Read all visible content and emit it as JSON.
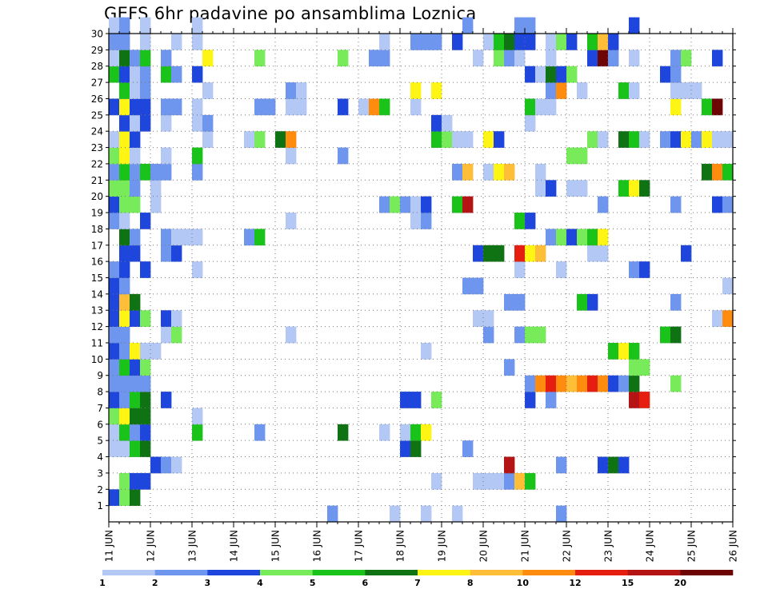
{
  "chart_data": {
    "type": "heatmap",
    "title": "GEFS 6hr padavine po ansamblima Loznica",
    "xlabel": "",
    "ylabel": "",
    "x_axis": {
      "unit": "6-hour step",
      "range": [
        0,
        60
      ],
      "tick_labels": [
        "11 JUN",
        "12 JUN",
        "13 JUN",
        "14 JUN",
        "15 JUN",
        "16 JUN",
        "17 JUN",
        "18 JUN",
        "19 JUN",
        "20 JUN",
        "21 JUN",
        "22 JUN",
        "23 JUN",
        "24 JUN",
        "25 JUN",
        "26 JUN"
      ]
    },
    "y_axis": {
      "range": [
        0,
        30
      ],
      "tick_labels": [
        1,
        2,
        3,
        4,
        5,
        6,
        7,
        8,
        9,
        10,
        11,
        12,
        13,
        14,
        15,
        16,
        17,
        18,
        19,
        20,
        21,
        22,
        23,
        24,
        25,
        26,
        27,
        28,
        29,
        30
      ]
    },
    "grid": true,
    "colorbar": {
      "labels": [
        "1",
        "2",
        "3",
        "4",
        "5",
        "6",
        "7",
        "8",
        "10",
        "12",
        "15",
        "20"
      ],
      "colors": [
        "#b4c8f5",
        "#6e96ef",
        "#1e46dc",
        "#78eb5a",
        "#19c319",
        "#0f7314",
        "#fff514",
        "#ffbe37",
        "#ff8c0f",
        "#e61e0f",
        "#b41414",
        "#6e0505"
      ]
    },
    "cells": [
      [
        0,
        1,
        3
      ],
      [
        1,
        1,
        4
      ],
      [
        2,
        1,
        6
      ],
      [
        1,
        2,
        4
      ],
      [
        2,
        2,
        3
      ],
      [
        3,
        2,
        3
      ],
      [
        31,
        2,
        1
      ],
      [
        35,
        2,
        1
      ],
      [
        36,
        2,
        1
      ],
      [
        37,
        2,
        1
      ],
      [
        38,
        2,
        2
      ],
      [
        39,
        2,
        8
      ],
      [
        40,
        2,
        5
      ],
      [
        4,
        3,
        3
      ],
      [
        5,
        3,
        2
      ],
      [
        6,
        3,
        1
      ],
      [
        38,
        3,
        11
      ],
      [
        43,
        3,
        2
      ],
      [
        47,
        3,
        3
      ],
      [
        48,
        3,
        6
      ],
      [
        49,
        3,
        3
      ],
      [
        0,
        4,
        1
      ],
      [
        1,
        4,
        1
      ],
      [
        2,
        4,
        5
      ],
      [
        3,
        4,
        6
      ],
      [
        28,
        4,
        3
      ],
      [
        29,
        4,
        6
      ],
      [
        34,
        4,
        2
      ],
      [
        0,
        5,
        1
      ],
      [
        1,
        5,
        5
      ],
      [
        2,
        5,
        2
      ],
      [
        3,
        5,
        3
      ],
      [
        8,
        5,
        5
      ],
      [
        14,
        5,
        2
      ],
      [
        22,
        5,
        6
      ],
      [
        26,
        5,
        1
      ],
      [
        28,
        5,
        1
      ],
      [
        29,
        5,
        5
      ],
      [
        30,
        5,
        7
      ],
      [
        0,
        6,
        4
      ],
      [
        1,
        6,
        7
      ],
      [
        2,
        6,
        6
      ],
      [
        3,
        6,
        6
      ],
      [
        8,
        6,
        1
      ],
      [
        0,
        7,
        3
      ],
      [
        1,
        7,
        2
      ],
      [
        2,
        7,
        5
      ],
      [
        3,
        7,
        6
      ],
      [
        5,
        7,
        3
      ],
      [
        28,
        7,
        3
      ],
      [
        29,
        7,
        3
      ],
      [
        31,
        7,
        4
      ],
      [
        40,
        7,
        3
      ],
      [
        42,
        7,
        2
      ],
      [
        50,
        7,
        11
      ],
      [
        51,
        7,
        10
      ],
      [
        0,
        8,
        2
      ],
      [
        1,
        8,
        2
      ],
      [
        2,
        8,
        2
      ],
      [
        3,
        8,
        2
      ],
      [
        40,
        8,
        2
      ],
      [
        41,
        8,
        9
      ],
      [
        42,
        8,
        10
      ],
      [
        43,
        8,
        9
      ],
      [
        44,
        8,
        8
      ],
      [
        45,
        8,
        9
      ],
      [
        46,
        8,
        10
      ],
      [
        47,
        8,
        9
      ],
      [
        48,
        8,
        3
      ],
      [
        49,
        8,
        2
      ],
      [
        50,
        8,
        6
      ],
      [
        54,
        8,
        4
      ],
      [
        0,
        9,
        2
      ],
      [
        1,
        9,
        5
      ],
      [
        2,
        9,
        3
      ],
      [
        3,
        9,
        4
      ],
      [
        38,
        9,
        2
      ],
      [
        50,
        9,
        4
      ],
      [
        51,
        9,
        4
      ],
      [
        0,
        10,
        3
      ],
      [
        1,
        10,
        2
      ],
      [
        2,
        10,
        7
      ],
      [
        3,
        10,
        1
      ],
      [
        4,
        10,
        1
      ],
      [
        30,
        10,
        1
      ],
      [
        48,
        10,
        5
      ],
      [
        49,
        10,
        7
      ],
      [
        50,
        10,
        5
      ],
      [
        0,
        11,
        2
      ],
      [
        1,
        11,
        2
      ],
      [
        5,
        11,
        1
      ],
      [
        6,
        11,
        4
      ],
      [
        17,
        11,
        1
      ],
      [
        36,
        11,
        2
      ],
      [
        39,
        11,
        2
      ],
      [
        40,
        11,
        4
      ],
      [
        41,
        11,
        4
      ],
      [
        53,
        11,
        5
      ],
      [
        54,
        11,
        6
      ],
      [
        0,
        12,
        3
      ],
      [
        1,
        12,
        7
      ],
      [
        2,
        12,
        3
      ],
      [
        3,
        12,
        4
      ],
      [
        5,
        12,
        3
      ],
      [
        6,
        12,
        1
      ],
      [
        35,
        12,
        1
      ],
      [
        36,
        12,
        1
      ],
      [
        58,
        12,
        1
      ],
      [
        59,
        12,
        9
      ],
      [
        0,
        13,
        3
      ],
      [
        1,
        13,
        8
      ],
      [
        2,
        13,
        6
      ],
      [
        38,
        13,
        2
      ],
      [
        39,
        13,
        2
      ],
      [
        45,
        13,
        5
      ],
      [
        46,
        13,
        3
      ],
      [
        54,
        13,
        2
      ],
      [
        0,
        14,
        3
      ],
      [
        1,
        14,
        2
      ],
      [
        34,
        14,
        2
      ],
      [
        35,
        14,
        2
      ],
      [
        59,
        14,
        1
      ],
      [
        0,
        15,
        2
      ],
      [
        1,
        15,
        3
      ],
      [
        3,
        15,
        3
      ],
      [
        8,
        15,
        1
      ],
      [
        39,
        15,
        1
      ],
      [
        43,
        15,
        1
      ],
      [
        50,
        15,
        2
      ],
      [
        51,
        15,
        3
      ],
      [
        1,
        16,
        3
      ],
      [
        2,
        16,
        3
      ],
      [
        5,
        16,
        2
      ],
      [
        6,
        16,
        3
      ],
      [
        35,
        16,
        3
      ],
      [
        36,
        16,
        6
      ],
      [
        37,
        16,
        6
      ],
      [
        39,
        16,
        10
      ],
      [
        40,
        16,
        7
      ],
      [
        41,
        16,
        8
      ],
      [
        46,
        16,
        1
      ],
      [
        47,
        16,
        1
      ],
      [
        55,
        16,
        3
      ],
      [
        1,
        17,
        6
      ],
      [
        2,
        17,
        2
      ],
      [
        5,
        17,
        2
      ],
      [
        6,
        17,
        1
      ],
      [
        7,
        17,
        1
      ],
      [
        8,
        17,
        1
      ],
      [
        13,
        17,
        2
      ],
      [
        14,
        17,
        5
      ],
      [
        42,
        17,
        2
      ],
      [
        43,
        17,
        4
      ],
      [
        44,
        17,
        3
      ],
      [
        45,
        17,
        4
      ],
      [
        46,
        17,
        5
      ],
      [
        47,
        17,
        7
      ],
      [
        0,
        18,
        2
      ],
      [
        1,
        18,
        1
      ],
      [
        3,
        18,
        3
      ],
      [
        17,
        18,
        1
      ],
      [
        29,
        18,
        1
      ],
      [
        30,
        18,
        2
      ],
      [
        39,
        18,
        5
      ],
      [
        40,
        18,
        3
      ],
      [
        0,
        19,
        3
      ],
      [
        1,
        19,
        4
      ],
      [
        2,
        19,
        4
      ],
      [
        4,
        19,
        1
      ],
      [
        26,
        19,
        2
      ],
      [
        27,
        19,
        4
      ],
      [
        28,
        19,
        2
      ],
      [
        29,
        19,
        1
      ],
      [
        30,
        19,
        3
      ],
      [
        33,
        19,
        5
      ],
      [
        34,
        19,
        11
      ],
      [
        47,
        19,
        2
      ],
      [
        54,
        19,
        2
      ],
      [
        58,
        19,
        3
      ],
      [
        59,
        19,
        2
      ],
      [
        0,
        20,
        4
      ],
      [
        1,
        20,
        4
      ],
      [
        2,
        20,
        2
      ],
      [
        4,
        20,
        1
      ],
      [
        41,
        20,
        1
      ],
      [
        42,
        20,
        3
      ],
      [
        44,
        20,
        1
      ],
      [
        45,
        20,
        1
      ],
      [
        49,
        20,
        5
      ],
      [
        50,
        20,
        7
      ],
      [
        51,
        20,
        6
      ],
      [
        0,
        21,
        2
      ],
      [
        1,
        21,
        5
      ],
      [
        2,
        21,
        2
      ],
      [
        3,
        21,
        5
      ],
      [
        4,
        21,
        2
      ],
      [
        5,
        21,
        2
      ],
      [
        8,
        21,
        2
      ],
      [
        33,
        21,
        2
      ],
      [
        34,
        21,
        8
      ],
      [
        36,
        21,
        1
      ],
      [
        37,
        21,
        7
      ],
      [
        38,
        21,
        8
      ],
      [
        41,
        21,
        1
      ],
      [
        57,
        21,
        6
      ],
      [
        58,
        21,
        9
      ],
      [
        59,
        21,
        5
      ],
      [
        0,
        22,
        4
      ],
      [
        1,
        22,
        7
      ],
      [
        2,
        22,
        1
      ],
      [
        5,
        22,
        1
      ],
      [
        8,
        22,
        5
      ],
      [
        17,
        22,
        1
      ],
      [
        22,
        22,
        2
      ],
      [
        44,
        22,
        4
      ],
      [
        45,
        22,
        4
      ],
      [
        0,
        23,
        1
      ],
      [
        1,
        23,
        7
      ],
      [
        2,
        23,
        3
      ],
      [
        9,
        23,
        1
      ],
      [
        13,
        23,
        1
      ],
      [
        14,
        23,
        4
      ],
      [
        16,
        23,
        6
      ],
      [
        17,
        23,
        9
      ],
      [
        31,
        23,
        5
      ],
      [
        32,
        23,
        4
      ],
      [
        33,
        23,
        1
      ],
      [
        34,
        23,
        1
      ],
      [
        36,
        23,
        7
      ],
      [
        37,
        23,
        3
      ],
      [
        46,
        23,
        4
      ],
      [
        47,
        23,
        1
      ],
      [
        49,
        23,
        6
      ],
      [
        50,
        23,
        5
      ],
      [
        51,
        23,
        1
      ],
      [
        53,
        23,
        2
      ],
      [
        54,
        23,
        3
      ],
      [
        55,
        23,
        7
      ],
      [
        56,
        23,
        2
      ],
      [
        57,
        23,
        7
      ],
      [
        58,
        23,
        1
      ],
      [
        59,
        23,
        1
      ],
      [
        1,
        24,
        3
      ],
      [
        2,
        24,
        1
      ],
      [
        3,
        24,
        3
      ],
      [
        5,
        24,
        1
      ],
      [
        8,
        24,
        1
      ],
      [
        9,
        24,
        2
      ],
      [
        31,
        24,
        3
      ],
      [
        32,
        24,
        1
      ],
      [
        40,
        24,
        1
      ],
      [
        0,
        25,
        3
      ],
      [
        1,
        25,
        7
      ],
      [
        2,
        25,
        3
      ],
      [
        3,
        25,
        3
      ],
      [
        5,
        25,
        2
      ],
      [
        6,
        25,
        2
      ],
      [
        8,
        25,
        1
      ],
      [
        14,
        25,
        2
      ],
      [
        15,
        25,
        2
      ],
      [
        17,
        25,
        1
      ],
      [
        18,
        25,
        1
      ],
      [
        22,
        25,
        3
      ],
      [
        24,
        25,
        1
      ],
      [
        25,
        25,
        9
      ],
      [
        26,
        25,
        5
      ],
      [
        29,
        25,
        1
      ],
      [
        40,
        25,
        5
      ],
      [
        41,
        25,
        1
      ],
      [
        42,
        25,
        1
      ],
      [
        54,
        25,
        7
      ],
      [
        57,
        25,
        5
      ],
      [
        58,
        25,
        12
      ],
      [
        1,
        26,
        5
      ],
      [
        2,
        26,
        1
      ],
      [
        3,
        26,
        2
      ],
      [
        9,
        26,
        1
      ],
      [
        17,
        26,
        2
      ],
      [
        18,
        26,
        1
      ],
      [
        29,
        26,
        7
      ],
      [
        31,
        26,
        7
      ],
      [
        42,
        26,
        2
      ],
      [
        43,
        26,
        9
      ],
      [
        45,
        26,
        1
      ],
      [
        49,
        26,
        5
      ],
      [
        50,
        26,
        1
      ],
      [
        54,
        26,
        1
      ],
      [
        55,
        26,
        1
      ],
      [
        56,
        26,
        1
      ],
      [
        0,
        27,
        5
      ],
      [
        1,
        27,
        3
      ],
      [
        2,
        27,
        1
      ],
      [
        3,
        27,
        2
      ],
      [
        5,
        27,
        5
      ],
      [
        6,
        27,
        2
      ],
      [
        8,
        27,
        3
      ],
      [
        40,
        27,
        3
      ],
      [
        41,
        27,
        1
      ],
      [
        42,
        27,
        6
      ],
      [
        43,
        27,
        3
      ],
      [
        44,
        27,
        4
      ],
      [
        53,
        27,
        3
      ],
      [
        54,
        27,
        2
      ],
      [
        0,
        28,
        1
      ],
      [
        1,
        28,
        6
      ],
      [
        2,
        28,
        2
      ],
      [
        3,
        28,
        5
      ],
      [
        5,
        28,
        2
      ],
      [
        9,
        28,
        7
      ],
      [
        14,
        28,
        4
      ],
      [
        22,
        28,
        4
      ],
      [
        25,
        28,
        2
      ],
      [
        26,
        28,
        2
      ],
      [
        35,
        28,
        1
      ],
      [
        37,
        28,
        4
      ],
      [
        38,
        28,
        2
      ],
      [
        39,
        28,
        1
      ],
      [
        42,
        28,
        1
      ],
      [
        46,
        28,
        3
      ],
      [
        47,
        28,
        12
      ],
      [
        48,
        28,
        2
      ],
      [
        50,
        28,
        1
      ],
      [
        54,
        28,
        2
      ],
      [
        55,
        28,
        4
      ],
      [
        58,
        28,
        3
      ],
      [
        0,
        29,
        2
      ],
      [
        1,
        29,
        2
      ],
      [
        3,
        29,
        1
      ],
      [
        6,
        29,
        1
      ],
      [
        8,
        29,
        1
      ],
      [
        26,
        29,
        1
      ],
      [
        29,
        29,
        2
      ],
      [
        30,
        29,
        2
      ],
      [
        31,
        29,
        2
      ],
      [
        33,
        29,
        3
      ],
      [
        36,
        29,
        1
      ],
      [
        37,
        29,
        5
      ],
      [
        38,
        29,
        6
      ],
      [
        39,
        29,
        3
      ],
      [
        40,
        29,
        3
      ],
      [
        42,
        29,
        1
      ],
      [
        43,
        29,
        4
      ],
      [
        44,
        29,
        3
      ],
      [
        46,
        29,
        5
      ],
      [
        47,
        29,
        8
      ],
      [
        48,
        29,
        3
      ],
      [
        0,
        30,
        1
      ],
      [
        1,
        30,
        2
      ],
      [
        3,
        30,
        1
      ],
      [
        8,
        30,
        1
      ],
      [
        34,
        30,
        2
      ],
      [
        39,
        30,
        2
      ],
      [
        40,
        30,
        2
      ],
      [
        50,
        30,
        3
      ],
      [
        21,
        0,
        2
      ],
      [
        27,
        0,
        1
      ],
      [
        43,
        0,
        2
      ],
      [
        33,
        0,
        1
      ],
      [
        30,
        0,
        1
      ]
    ]
  }
}
